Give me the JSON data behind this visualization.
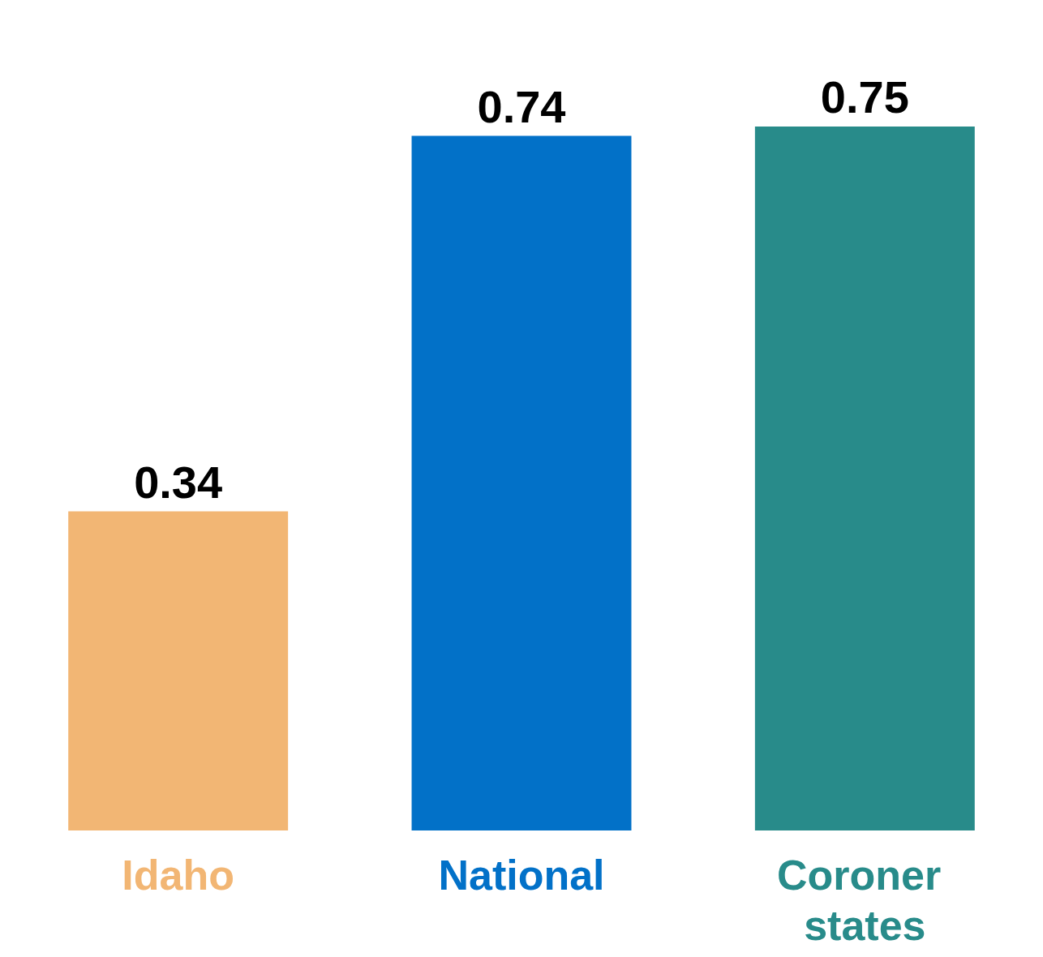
{
  "chart_data": {
    "type": "bar",
    "categories": [
      "Idaho",
      "National",
      "Coroner states"
    ],
    "values": [
      0.34,
      0.74,
      0.75
    ],
    "colors": [
      "#f2b674",
      "#0271c8",
      "#288b8a"
    ],
    "data_labels": true
  }
}
